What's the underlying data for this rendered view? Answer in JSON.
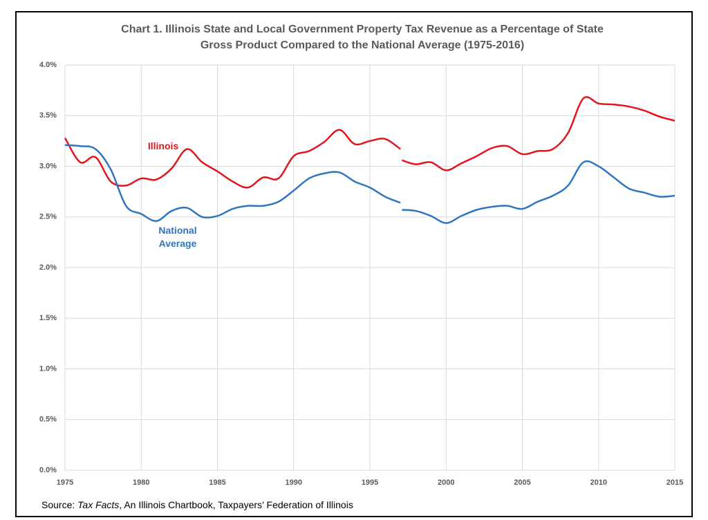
{
  "chart_data": {
    "type": "line",
    "title": [
      "Chart 1. Illinois State and Local Government Property Tax Revenue as a Percentage of State",
      "Gross Product Compared to the National Average (1975-2016)"
    ],
    "x": [
      1975,
      1976,
      1977,
      1978,
      1979,
      1980,
      1981,
      1982,
      1983,
      1984,
      1985,
      1986,
      1987,
      1988,
      1989,
      1990,
      1991,
      1992,
      1993,
      1994,
      1995,
      1996,
      1997,
      1997.05,
      1997.1,
      1998,
      1999,
      2000,
      2001,
      2002,
      2003,
      2004,
      2005,
      2006,
      2007,
      2008,
      2009,
      2010,
      2011,
      2012,
      2013,
      2014,
      2015
    ],
    "series": [
      {
        "name": "Illinois",
        "color": "#e3141b",
        "values": [
          3.28,
          3.04,
          3.09,
          2.85,
          2.81,
          2.88,
          2.87,
          2.98,
          3.17,
          3.04,
          2.95,
          2.85,
          2.79,
          2.89,
          2.88,
          3.1,
          3.15,
          3.24,
          3.36,
          3.22,
          3.25,
          3.27,
          3.17,
          null,
          3.06,
          3.02,
          3.04,
          2.96,
          3.03,
          3.1,
          3.18,
          3.2,
          3.12,
          3.15,
          3.17,
          3.33,
          3.67,
          3.62,
          3.61,
          3.59,
          3.55,
          3.49,
          3.45
        ]
      },
      {
        "name": "National Average",
        "color": "#2e75c0",
        "values": [
          3.21,
          3.2,
          3.17,
          2.97,
          2.61,
          2.53,
          2.46,
          2.56,
          2.59,
          2.5,
          2.51,
          2.58,
          2.61,
          2.61,
          2.65,
          2.76,
          2.88,
          2.93,
          2.94,
          2.85,
          2.79,
          2.7,
          2.64,
          null,
          2.57,
          2.56,
          2.51,
          2.44,
          2.51,
          2.57,
          2.6,
          2.61,
          2.58,
          2.65,
          2.71,
          2.81,
          3.04,
          3.0,
          2.89,
          2.78,
          2.74,
          2.7,
          2.71
        ]
      }
    ],
    "xlim": [
      1975,
      2015
    ],
    "xticks": [
      1975,
      1980,
      1985,
      1990,
      1995,
      2000,
      2005,
      2010,
      2015
    ],
    "ylim": [
      0,
      4
    ],
    "yticks": [
      {
        "value": 0,
        "label": "0.0%"
      },
      {
        "value": 0.5,
        "label": "0.5%"
      },
      {
        "value": 1,
        "label": "1.0%"
      },
      {
        "value": 1.5,
        "label": "1.5%"
      },
      {
        "value": 2,
        "label": "2.0%"
      },
      {
        "value": 2.5,
        "label": "2.5%"
      },
      {
        "value": 3,
        "label": "3.0%"
      },
      {
        "value": 3.5,
        "label": "3.5%"
      },
      {
        "value": 4,
        "label": "4.0%"
      }
    ],
    "grid": true,
    "source": {
      "prefix": "Source:",
      "title": "Tax Facts",
      "rest": ", An Illinois Chartbook, Taxpayers’ Federation of Illinois"
    }
  }
}
